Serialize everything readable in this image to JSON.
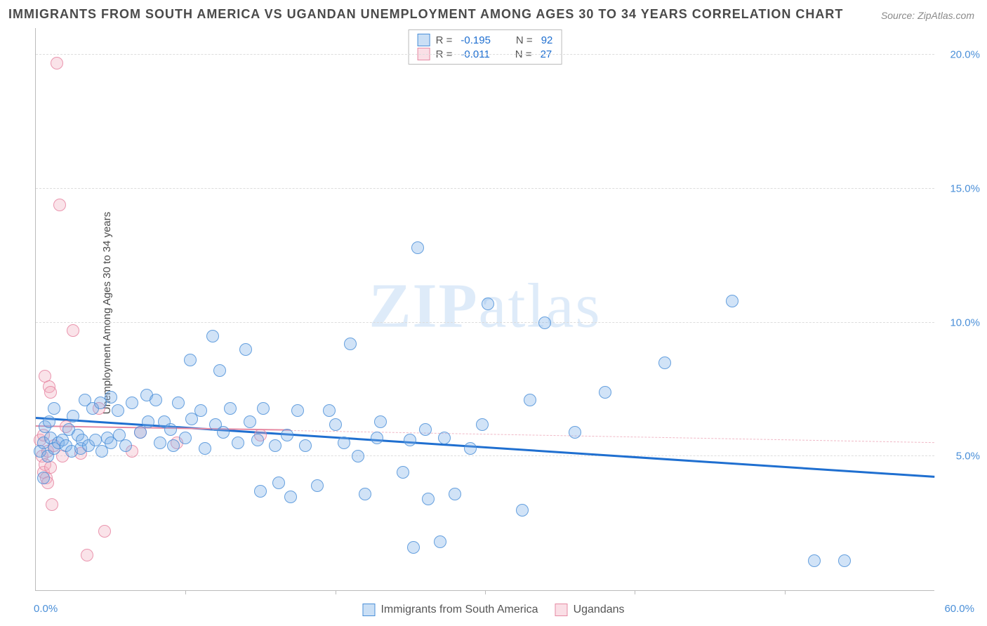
{
  "title": "IMMIGRANTS FROM SOUTH AMERICA VS UGANDAN UNEMPLOYMENT AMONG AGES 30 TO 34 YEARS CORRELATION CHART",
  "source": "Source: ZipAtlas.com",
  "y_axis_label": "Unemployment Among Ages 30 to 34 years",
  "watermark_bold": "ZIP",
  "watermark_rest": "atlas",
  "chart": {
    "type": "scatter",
    "xlim": [
      0,
      60
    ],
    "ylim": [
      0,
      21
    ],
    "y_ticks": [
      5,
      10,
      15,
      20
    ],
    "y_tick_labels": [
      "5.0%",
      "10.0%",
      "15.0%",
      "20.0%"
    ],
    "x_ticks": [
      10,
      20,
      30,
      40,
      50
    ],
    "x_origin_label": "0.0%",
    "x_max_label": "60.0%",
    "y_tick_color": "#4a8fd8",
    "grid_color": "#dddddd",
    "background_color": "#ffffff",
    "marker_radius": 9,
    "series_a": {
      "name": "Immigrants from South America",
      "fill": "rgba(123,175,231,0.35)",
      "stroke": "#4a8fd8",
      "r_value": "-0.195",
      "n_value": "92",
      "trend": {
        "x1": 0,
        "y1": 6.4,
        "x2": 60,
        "y2": 4.2,
        "color": "#1f6fd0",
        "width": 3
      },
      "points": [
        [
          0.3,
          5.2
        ],
        [
          0.5,
          4.2
        ],
        [
          0.5,
          5.5
        ],
        [
          0.6,
          6.1
        ],
        [
          0.8,
          5.0
        ],
        [
          0.9,
          6.3
        ],
        [
          1.0,
          5.7
        ],
        [
          1.2,
          5.3
        ],
        [
          1.2,
          6.8
        ],
        [
          1.5,
          5.5
        ],
        [
          1.8,
          5.6
        ],
        [
          2.0,
          5.4
        ],
        [
          2.2,
          6.0
        ],
        [
          2.4,
          5.2
        ],
        [
          2.5,
          6.5
        ],
        [
          2.8,
          5.8
        ],
        [
          3.0,
          5.3
        ],
        [
          3.1,
          5.6
        ],
        [
          3.3,
          7.1
        ],
        [
          3.5,
          5.4
        ],
        [
          3.8,
          6.8
        ],
        [
          4.0,
          5.6
        ],
        [
          4.3,
          7.0
        ],
        [
          4.4,
          5.2
        ],
        [
          4.8,
          5.7
        ],
        [
          5.0,
          7.2
        ],
        [
          5.0,
          5.5
        ],
        [
          5.5,
          6.7
        ],
        [
          5.6,
          5.8
        ],
        [
          6.0,
          5.4
        ],
        [
          6.4,
          7.0
        ],
        [
          7.0,
          5.9
        ],
        [
          7.4,
          7.3
        ],
        [
          7.5,
          6.3
        ],
        [
          8.0,
          7.1
        ],
        [
          8.3,
          5.5
        ],
        [
          8.6,
          6.3
        ],
        [
          9.0,
          6.0
        ],
        [
          9.2,
          5.4
        ],
        [
          9.5,
          7.0
        ],
        [
          10.0,
          5.7
        ],
        [
          10.3,
          8.6
        ],
        [
          10.4,
          6.4
        ],
        [
          11.0,
          6.7
        ],
        [
          11.3,
          5.3
        ],
        [
          11.8,
          9.5
        ],
        [
          12.0,
          6.2
        ],
        [
          12.3,
          8.2
        ],
        [
          12.5,
          5.9
        ],
        [
          13.0,
          6.8
        ],
        [
          13.5,
          5.5
        ],
        [
          14.0,
          9.0
        ],
        [
          14.3,
          6.3
        ],
        [
          14.8,
          5.6
        ],
        [
          15.0,
          3.7
        ],
        [
          15.2,
          6.8
        ],
        [
          16.0,
          5.4
        ],
        [
          16.2,
          4.0
        ],
        [
          16.8,
          5.8
        ],
        [
          17.0,
          3.5
        ],
        [
          17.5,
          6.7
        ],
        [
          18.0,
          5.4
        ],
        [
          18.8,
          3.9
        ],
        [
          19.6,
          6.7
        ],
        [
          20.0,
          6.2
        ],
        [
          20.6,
          5.5
        ],
        [
          21.0,
          9.2
        ],
        [
          21.5,
          5.0
        ],
        [
          22.0,
          3.6
        ],
        [
          22.8,
          5.7
        ],
        [
          23.0,
          6.3
        ],
        [
          24.5,
          4.4
        ],
        [
          25.0,
          5.6
        ],
        [
          25.2,
          1.6
        ],
        [
          25.5,
          12.8
        ],
        [
          26.0,
          6.0
        ],
        [
          26.2,
          3.4
        ],
        [
          27.0,
          1.8
        ],
        [
          27.3,
          5.7
        ],
        [
          28.0,
          3.6
        ],
        [
          29.0,
          5.3
        ],
        [
          29.8,
          6.2
        ],
        [
          30.2,
          10.7
        ],
        [
          32.5,
          3.0
        ],
        [
          33.0,
          7.1
        ],
        [
          34.0,
          10.0
        ],
        [
          36.0,
          5.9
        ],
        [
          38.0,
          7.4
        ],
        [
          42.0,
          8.5
        ],
        [
          46.5,
          10.8
        ],
        [
          52.0,
          1.1
        ],
        [
          54.0,
          1.1
        ]
      ]
    },
    "series_b": {
      "name": "Ugandans",
      "fill": "rgba(242,175,192,0.35)",
      "stroke": "#e68aa3",
      "r_value": "-0.011",
      "n_value": "27",
      "trend_solid": {
        "x1": 0,
        "y1": 6.1,
        "x2": 17,
        "y2": 5.95
      },
      "trend_dash": {
        "x1": 17,
        "y1": 5.95,
        "x2": 60,
        "y2": 5.5
      },
      "points": [
        [
          0.3,
          5.6
        ],
        [
          0.4,
          5.0
        ],
        [
          0.5,
          4.4
        ],
        [
          0.5,
          5.8
        ],
        [
          0.6,
          4.7
        ],
        [
          0.6,
          8.0
        ],
        [
          0.7,
          4.2
        ],
        [
          0.8,
          5.2
        ],
        [
          0.8,
          4.0
        ],
        [
          0.9,
          7.6
        ],
        [
          1.0,
          4.6
        ],
        [
          1.0,
          7.4
        ],
        [
          1.1,
          3.2
        ],
        [
          1.2,
          5.4
        ],
        [
          1.4,
          19.7
        ],
        [
          1.6,
          14.4
        ],
        [
          1.8,
          5.0
        ],
        [
          2.0,
          6.1
        ],
        [
          2.5,
          9.7
        ],
        [
          3.0,
          5.1
        ],
        [
          3.4,
          1.3
        ],
        [
          4.2,
          6.8
        ],
        [
          4.6,
          2.2
        ],
        [
          6.4,
          5.2
        ],
        [
          7.0,
          5.9
        ],
        [
          9.4,
          5.5
        ],
        [
          15.0,
          5.8
        ]
      ]
    }
  },
  "legend_top": {
    "r_label": "R =",
    "n_label": "N ="
  },
  "legend_bottom": {
    "a_label": "Immigrants from South America",
    "b_label": "Ugandans"
  }
}
